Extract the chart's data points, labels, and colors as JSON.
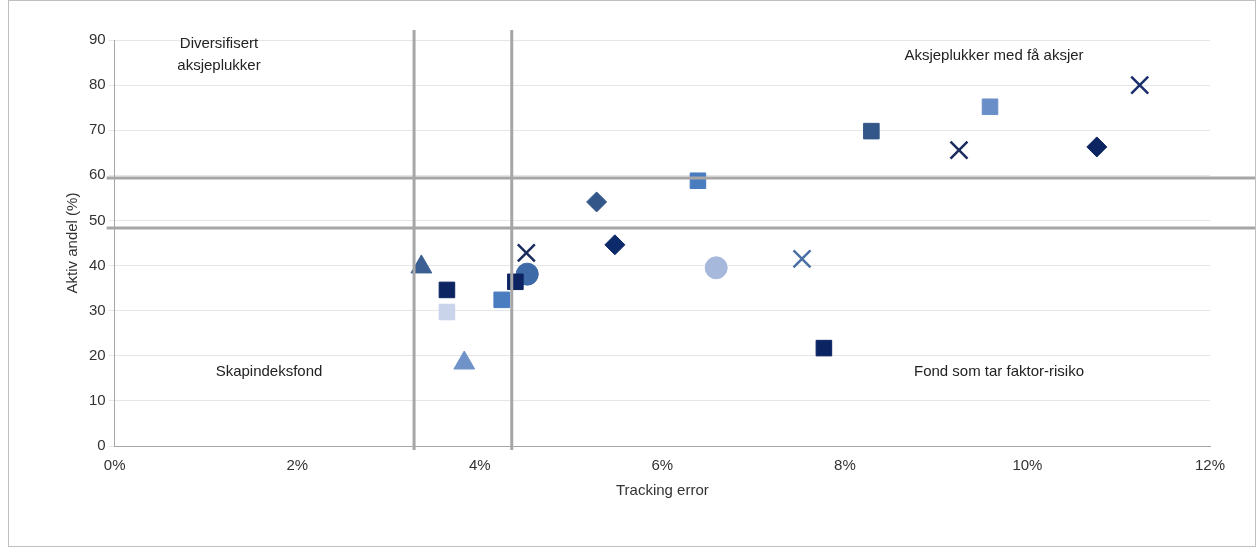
{
  "chart_data": {
    "type": "scatter",
    "xlabel": "Tracking error",
    "ylabel": "Aktiv andel (%)",
    "xlim": [
      0,
      0.12
    ],
    "xticks": [
      {
        "value": 0,
        "label": "0%"
      },
      {
        "value": 0.02,
        "label": "2%"
      },
      {
        "value": 0.04,
        "label": "4%"
      },
      {
        "value": 0.06,
        "label": "6%"
      },
      {
        "value": 0.08,
        "label": "8%"
      },
      {
        "value": 0.1,
        "label": "10%"
      },
      {
        "value": 0.12,
        "label": "12%"
      }
    ],
    "ylim": [
      0,
      90
    ],
    "yticks": [
      0,
      10,
      20,
      30,
      40,
      50,
      60,
      70,
      80,
      90
    ],
    "grid": "y",
    "legend": false,
    "series": [
      {
        "x": [
          0.1123
        ],
        "values": [
          80.0
        ],
        "color": "#1a2d6b",
        "marker": "cross"
      },
      {
        "x": [
          0.0959
        ],
        "values": [
          75.2
        ],
        "color": "#6a8fc8",
        "marker": "square"
      },
      {
        "x": [
          0.0829
        ],
        "values": [
          69.8
        ],
        "color": "#34578a",
        "marker": "square"
      },
      {
        "x": [
          0.0925
        ],
        "values": [
          65.6
        ],
        "color": "#1a2b5e",
        "marker": "cross"
      },
      {
        "x": [
          0.1076
        ],
        "values": [
          66.3
        ],
        "color": "#0d2463",
        "marker": "diamond"
      },
      {
        "x": [
          0.0639
        ],
        "values": [
          58.8
        ],
        "color": "#4a7cc0",
        "marker": "square"
      },
      {
        "x": [
          0.0528
        ],
        "values": [
          54.1
        ],
        "color": "#34578a",
        "marker": "diamond"
      },
      {
        "x": [
          0.0548
        ],
        "values": [
          44.6
        ],
        "color": "#0d2a6b",
        "marker": "diamond"
      },
      {
        "x": [
          0.0659
        ],
        "values": [
          39.5
        ],
        "color": "#a6b8dc",
        "marker": "circle"
      },
      {
        "x": [
          0.0753
        ],
        "values": [
          41.5
        ],
        "color": "#4a6fa5",
        "marker": "cross"
      },
      {
        "x": [
          0.0777
        ],
        "values": [
          21.7
        ],
        "color": "#0d2463",
        "marker": "square"
      },
      {
        "x": [
          0.0336
        ],
        "values": [
          39.7
        ],
        "color": "#3b5f92",
        "marker": "triangle"
      },
      {
        "x": [
          0.0364
        ],
        "values": [
          29.7
        ],
        "color": "#c9d3ea",
        "marker": "square"
      },
      {
        "x": [
          0.0364
        ],
        "values": [
          34.6
        ],
        "color": "#0d2463",
        "marker": "square"
      },
      {
        "x": [
          0.0424
        ],
        "values": [
          32.4
        ],
        "color": "#4a7cc0",
        "marker": "square"
      },
      {
        "x": [
          0.0383
        ],
        "values": [
          18.4
        ],
        "color": "#6f93c9",
        "marker": "triangle"
      },
      {
        "x": [
          0.0439
        ],
        "values": [
          36.4
        ],
        "color": "#0d2463",
        "marker": "square"
      },
      {
        "x": [
          0.0452
        ],
        "values": [
          38.1
        ],
        "color": "#3f6aa8",
        "marker": "circle"
      },
      {
        "x": [
          0.0451
        ],
        "values": [
          42.8
        ],
        "color": "#1a2b5e",
        "marker": "cross"
      }
    ],
    "ref_lines": [
      {
        "axis": "x",
        "value": 0.0328,
        "color": "#a6a6a6"
      },
      {
        "axis": "x",
        "value": 0.0435,
        "color": "#a6a6a6"
      },
      {
        "axis": "y",
        "value": 59.4,
        "color": "#a6a6a6"
      },
      {
        "axis": "y",
        "value": 48.3,
        "color": "#a6a6a6"
      }
    ],
    "annotations": [
      "Diversifisert aksjeplukker",
      "Aksjeplukker med få aksjer",
      "Skapindeksfond",
      "Fond som tar faktor-risiko"
    ]
  }
}
